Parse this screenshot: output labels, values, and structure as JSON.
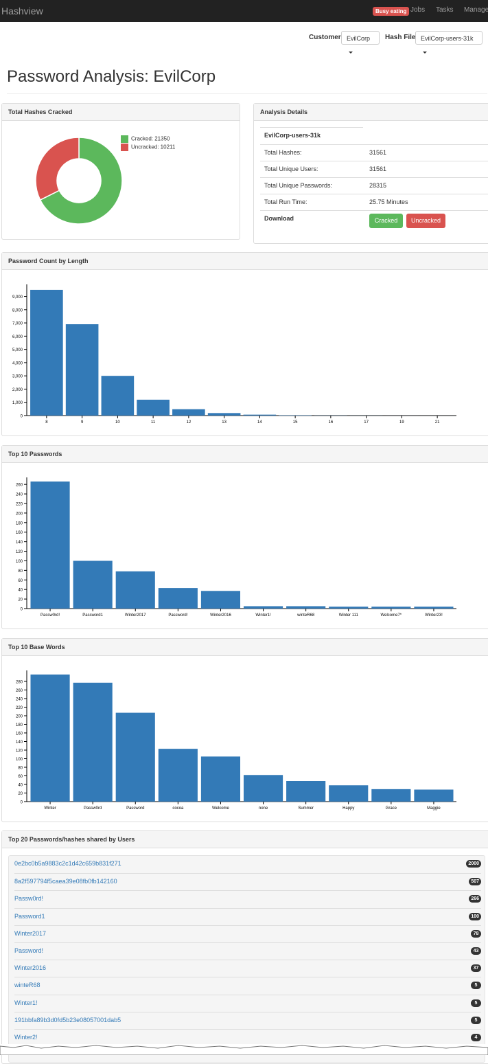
{
  "nav": {
    "brand": "Hashview",
    "status_badge": "Busy eating",
    "links": [
      "Jobs",
      "Tasks",
      "Manage"
    ]
  },
  "selectors": {
    "customer_label": "Customer:",
    "customer_value": "EvilCorp",
    "hashfile_label": "Hash File:",
    "hashfile_value": "EvilCorp-users-31k"
  },
  "page_title": "Password Analysis: EvilCorp",
  "cracked_panel": {
    "title": "Total Hashes Cracked",
    "legend": [
      {
        "label": "Cracked: 21350",
        "color": "#5cb85c"
      },
      {
        "label": "Uncracked: 10211",
        "color": "#d9534f"
      }
    ],
    "values": {
      "cracked": 21350,
      "uncracked": 10211
    }
  },
  "analysis_panel": {
    "title": "Analysis Details",
    "hashfile": "EvilCorp-users-31k",
    "rows": [
      {
        "label": "Total Hashes:",
        "value": "31561"
      },
      {
        "label": "Total Unique Users:",
        "value": "31561"
      },
      {
        "label": "Total Unique Passwords:",
        "value": "28315"
      },
      {
        "label": "Total Run Time:",
        "value": "25.75 Minutes"
      }
    ],
    "download_label": "Download",
    "cracked_button": "Cracked",
    "uncracked_button": "Uncracked",
    "colors": {
      "cracked": "#5cb85c",
      "uncracked": "#d9534f"
    }
  },
  "chart_data": [
    {
      "type": "bar",
      "title": "Password Count by Length",
      "categories": [
        "8",
        "9",
        "10",
        "11",
        "12",
        "13",
        "14",
        "15",
        "16",
        "17",
        "19",
        "21"
      ],
      "values": [
        9500,
        6900,
        3000,
        1200,
        480,
        190,
        70,
        25,
        10,
        5,
        2,
        1
      ],
      "ylim": [
        0,
        9600
      ],
      "yticks": [
        0,
        1000,
        2000,
        3000,
        4000,
        5000,
        6000,
        7000,
        8000,
        9000
      ],
      "ytick_labels": [
        "0",
        "1,000",
        "2,000",
        "3,000",
        "4,000",
        "5,000",
        "6,000",
        "7,000",
        "8,000",
        "9,000"
      ],
      "color": "#337ab7"
    },
    {
      "type": "bar",
      "title": "Top 10 Passwords",
      "categories": [
        "Passw0rd!",
        "Password1",
        "Winter2017",
        "Password!",
        "Winter2016",
        "Winter1!",
        "winteR68",
        "Winter 111",
        "Welcome7*",
        "Winter23!"
      ],
      "values": [
        266,
        100,
        78,
        43,
        37,
        5,
        5,
        4,
        4,
        4
      ],
      "ylim": [
        0,
        266
      ],
      "yticks": [
        0,
        20,
        40,
        60,
        80,
        100,
        120,
        140,
        160,
        180,
        200,
        220,
        240,
        260
      ],
      "ytick_labels": [
        "0",
        "20",
        "40",
        "60",
        "80",
        "100",
        "120",
        "140",
        "160",
        "180",
        "200",
        "220",
        "240",
        "260"
      ],
      "color": "#337ab7"
    },
    {
      "type": "bar",
      "title": "Top 10 Base Words",
      "categories": [
        "Winter",
        "Passw0rd",
        "Password",
        "cocoa",
        "Welcome",
        "none",
        "Summer",
        "Happy",
        "Grace",
        "Maggie"
      ],
      "values": [
        296,
        277,
        207,
        123,
        105,
        62,
        48,
        38,
        29,
        28
      ],
      "ylim": [
        0,
        296
      ],
      "yticks": [
        0,
        20,
        40,
        60,
        80,
        100,
        120,
        140,
        160,
        180,
        200,
        220,
        240,
        260,
        280
      ],
      "ytick_labels": [
        "0",
        "20",
        "40",
        "60",
        "80",
        "100",
        "120",
        "140",
        "160",
        "180",
        "200",
        "220",
        "240",
        "260",
        "280"
      ],
      "color": "#337ab7"
    }
  ],
  "shared_panel": {
    "title": "Top 20 Passwords/hashes shared by Users",
    "items": [
      {
        "text": "0e2bc0b5a9883c2c1d42c659b831f271",
        "count": "2000"
      },
      {
        "text": "8a2f597794f5caea39e08fb0fb142160",
        "count": "507"
      },
      {
        "text": "Passw0rd!",
        "count": "266"
      },
      {
        "text": "Password1",
        "count": "100"
      },
      {
        "text": "Winter2017",
        "count": "78"
      },
      {
        "text": "Password!",
        "count": "43"
      },
      {
        "text": "Winter2016",
        "count": "37"
      },
      {
        "text": "winteR68",
        "count": "5"
      },
      {
        "text": "Winter1!",
        "count": "5"
      },
      {
        "text": "191bbfa89b3d0fd5b23e08057001dab5",
        "count": "5"
      },
      {
        "text": "Winter2!",
        "count": "4"
      }
    ]
  }
}
